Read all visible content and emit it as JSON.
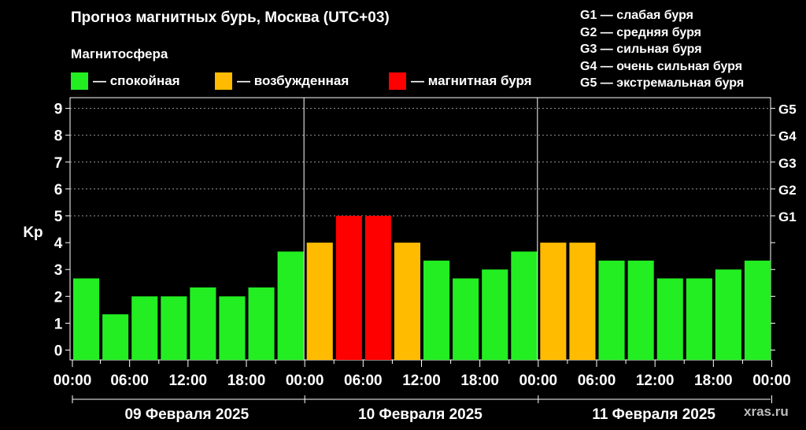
{
  "title": "Прогноз магнитных бурь, Москва (UTC+03)",
  "subtitle": "Магнитосфера",
  "legend": [
    {
      "label": "— спокойная",
      "color": "#22ee22"
    },
    {
      "label": "— возбужденная",
      "color": "#ffbb00"
    },
    {
      "label": "— магнитная буря",
      "color": "#ff0000"
    }
  ],
  "g_legend": [
    "G1 — слабая буря",
    "G2 — средняя буря",
    "G3 — сильная буря",
    "G4 — очень сильная буря",
    "G5 — экстремальная буря"
  ],
  "watermark": "xras.ru",
  "chart_data": {
    "type": "bar",
    "ylabel": "Kp",
    "ylim": [
      0,
      9
    ],
    "yticks": [
      "0",
      "1",
      "2",
      "3",
      "4",
      "5",
      "6",
      "7",
      "8",
      "9"
    ],
    "right_ticks": [
      {
        "kp": 5,
        "label": "G1"
      },
      {
        "kp": 6,
        "label": "G2"
      },
      {
        "kp": 7,
        "label": "G3"
      },
      {
        "kp": 8,
        "label": "G4"
      },
      {
        "kp": 9,
        "label": "G5"
      }
    ],
    "xtick_labels": [
      "00:00",
      "06:00",
      "12:00",
      "18:00",
      "00:00",
      "06:00",
      "12:00",
      "18:00",
      "00:00",
      "06:00",
      "12:00",
      "18:00",
      "00:00"
    ],
    "days": [
      "09 Февраля 2025",
      "10 Февраля 2025",
      "11 Февраля 2025"
    ],
    "colors": {
      "quiet": "#22ee22",
      "active": "#ffbb00",
      "storm": "#ff0000"
    },
    "values": [
      2.67,
      1.33,
      2.0,
      2.0,
      2.33,
      2.0,
      2.33,
      3.67,
      4.0,
      5.0,
      5.0,
      4.0,
      3.33,
      2.67,
      3.0,
      3.67,
      4.0,
      4.0,
      3.33,
      3.33,
      2.67,
      2.67,
      3.0,
      3.33
    ],
    "grid": true
  }
}
